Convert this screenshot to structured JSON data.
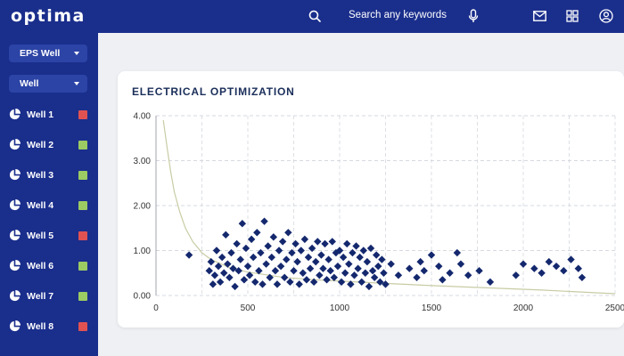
{
  "app": {
    "logo": "optima"
  },
  "sidebar": {
    "dropdowns": [
      {
        "label": "EPS Well"
      },
      {
        "label": "Well"
      }
    ],
    "wells": [
      {
        "label": "Well 1",
        "status_color": "#e05252"
      },
      {
        "label": "Well 2",
        "status_color": "#9ccb63"
      },
      {
        "label": "Well 3",
        "status_color": "#9ccb63"
      },
      {
        "label": "Well 4",
        "status_color": "#9ccb63"
      },
      {
        "label": "Well 5",
        "status_color": "#e05252"
      },
      {
        "label": "Well 6",
        "status_color": "#9ccb63"
      },
      {
        "label": "Well 7",
        "status_color": "#9ccb63"
      },
      {
        "label": "Well 8",
        "status_color": "#e05252"
      }
    ]
  },
  "header": {
    "search_placeholder": "Search any keywords",
    "icons": [
      "search-icon",
      "mic-icon",
      "mail-icon",
      "grid-icon",
      "user-icon"
    ]
  },
  "main": {
    "card_title": "ELECTRICAL OPTIMIZATION"
  },
  "colors": {
    "primary": "#1a2e8c",
    "marker": "#14286e",
    "curve": "#c8cca4",
    "red": "#e05252",
    "green": "#9ccb63"
  },
  "chart_data": {
    "type": "scatter",
    "title": "ELECTRICAL OPTIMIZATION",
    "xlabel": "",
    "ylabel": "",
    "xlim": [
      0,
      2500
    ],
    "ylim": [
      0,
      4
    ],
    "x_ticks": [
      "0",
      "500",
      "1000",
      "1500",
      "2000",
      "2500"
    ],
    "y_ticks": [
      "0.00",
      "1.00",
      "2.00",
      "3.00",
      "4.00"
    ],
    "grid": true,
    "points": [
      [
        180,
        0.9
      ],
      [
        290,
        0.55
      ],
      [
        300,
        0.75
      ],
      [
        310,
        0.25
      ],
      [
        320,
        0.45
      ],
      [
        330,
        1.0
      ],
      [
        340,
        0.65
      ],
      [
        350,
        0.3
      ],
      [
        360,
        0.85
      ],
      [
        370,
        0.5
      ],
      [
        380,
        1.35
      ],
      [
        390,
        0.7
      ],
      [
        400,
        0.4
      ],
      [
        410,
        0.95
      ],
      [
        420,
        0.6
      ],
      [
        430,
        0.2
      ],
      [
        440,
        1.15
      ],
      [
        450,
        0.55
      ],
      [
        460,
        0.8
      ],
      [
        470,
        1.6
      ],
      [
        480,
        0.35
      ],
      [
        490,
        1.05
      ],
      [
        500,
        0.65
      ],
      [
        510,
        0.45
      ],
      [
        520,
        1.25
      ],
      [
        530,
        0.85
      ],
      [
        540,
        0.3
      ],
      [
        550,
        1.4
      ],
      [
        560,
        0.55
      ],
      [
        570,
        0.95
      ],
      [
        580,
        0.25
      ],
      [
        590,
        1.65
      ],
      [
        600,
        0.7
      ],
      [
        610,
        1.1
      ],
      [
        620,
        0.4
      ],
      [
        630,
        0.85
      ],
      [
        640,
        1.3
      ],
      [
        650,
        0.55
      ],
      [
        660,
        0.25
      ],
      [
        670,
        1.0
      ],
      [
        680,
        0.65
      ],
      [
        690,
        1.2
      ],
      [
        700,
        0.4
      ],
      [
        710,
        0.8
      ],
      [
        720,
        1.4
      ],
      [
        730,
        0.3
      ],
      [
        740,
        0.95
      ],
      [
        750,
        0.55
      ],
      [
        760,
        1.15
      ],
      [
        770,
        0.75
      ],
      [
        780,
        0.25
      ],
      [
        790,
        1.0
      ],
      [
        800,
        0.5
      ],
      [
        810,
        1.25
      ],
      [
        820,
        0.35
      ],
      [
        830,
        0.85
      ],
      [
        840,
        0.6
      ],
      [
        850,
        1.05
      ],
      [
        860,
        0.3
      ],
      [
        870,
        0.75
      ],
      [
        880,
        1.2
      ],
      [
        890,
        0.45
      ],
      [
        900,
        0.9
      ],
      [
        910,
        0.6
      ],
      [
        920,
        1.15
      ],
      [
        930,
        0.35
      ],
      [
        940,
        0.8
      ],
      [
        950,
        0.55
      ],
      [
        960,
        1.2
      ],
      [
        970,
        0.4
      ],
      [
        980,
        0.95
      ],
      [
        990,
        0.65
      ],
      [
        1000,
        1.0
      ],
      [
        1010,
        0.3
      ],
      [
        1020,
        0.85
      ],
      [
        1030,
        0.5
      ],
      [
        1040,
        1.15
      ],
      [
        1050,
        0.7
      ],
      [
        1060,
        0.25
      ],
      [
        1070,
        0.95
      ],
      [
        1080,
        0.45
      ],
      [
        1090,
        1.1
      ],
      [
        1100,
        0.6
      ],
      [
        1110,
        0.85
      ],
      [
        1120,
        0.3
      ],
      [
        1130,
        1.0
      ],
      [
        1140,
        0.5
      ],
      [
        1150,
        0.75
      ],
      [
        1160,
        0.2
      ],
      [
        1170,
        1.05
      ],
      [
        1180,
        0.55
      ],
      [
        1190,
        0.4
      ],
      [
        1200,
        0.9
      ],
      [
        1210,
        0.65
      ],
      [
        1220,
        0.3
      ],
      [
        1230,
        0.8
      ],
      [
        1240,
        0.5
      ],
      [
        1250,
        0.25
      ],
      [
        1280,
        0.7
      ],
      [
        1320,
        0.45
      ],
      [
        1380,
        0.6
      ],
      [
        1420,
        0.4
      ],
      [
        1440,
        0.75
      ],
      [
        1460,
        0.55
      ],
      [
        1500,
        0.9
      ],
      [
        1540,
        0.65
      ],
      [
        1560,
        0.35
      ],
      [
        1600,
        0.5
      ],
      [
        1640,
        0.95
      ],
      [
        1660,
        0.7
      ],
      [
        1700,
        0.45
      ],
      [
        1760,
        0.55
      ],
      [
        1820,
        0.3
      ],
      [
        1960,
        0.45
      ],
      [
        2000,
        0.7
      ],
      [
        2060,
        0.6
      ],
      [
        2100,
        0.5
      ],
      [
        2140,
        0.75
      ],
      [
        2180,
        0.65
      ],
      [
        2220,
        0.55
      ],
      [
        2260,
        0.8
      ],
      [
        2300,
        0.6
      ],
      [
        2320,
        0.4
      ]
    ],
    "trend_curve": [
      [
        40,
        3.9
      ],
      [
        60,
        3.3
      ],
      [
        80,
        2.75
      ],
      [
        100,
        2.3
      ],
      [
        130,
        1.85
      ],
      [
        160,
        1.5
      ],
      [
        200,
        1.2
      ],
      [
        250,
        0.95
      ],
      [
        300,
        0.8
      ],
      [
        400,
        0.62
      ],
      [
        500,
        0.52
      ],
      [
        700,
        0.4
      ],
      [
        900,
        0.34
      ],
      [
        1200,
        0.28
      ],
      [
        1500,
        0.22
      ],
      [
        1800,
        0.17
      ],
      [
        2100,
        0.12
      ],
      [
        2400,
        0.06
      ],
      [
        2500,
        0.04
      ]
    ]
  }
}
